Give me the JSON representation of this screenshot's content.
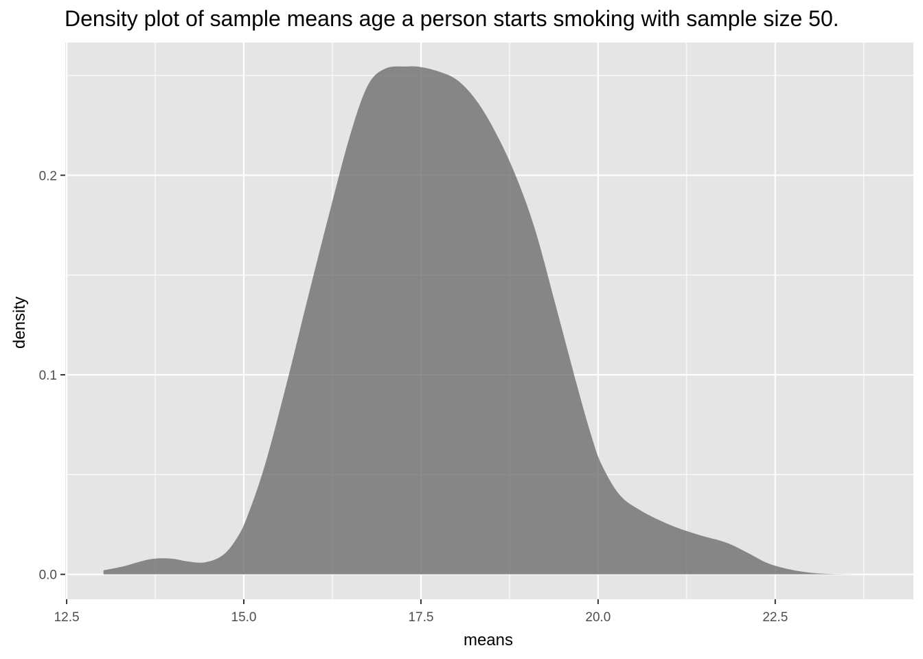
{
  "chart_data": {
    "type": "area",
    "title": "Density plot of sample means age a person starts smoking with sample size 50.",
    "xlabel": "means",
    "ylabel": "density",
    "xlim": [
      12.48,
      24.45
    ],
    "ylim": [
      -0.0125,
      0.2665
    ],
    "x_ticks": [
      12.5,
      15.0,
      17.5,
      20.0,
      22.5
    ],
    "x_tick_labels": [
      "12.5",
      "15.0",
      "17.5",
      "20.0",
      "22.5"
    ],
    "y_ticks": [
      0.0,
      0.1,
      0.2
    ],
    "y_tick_labels": [
      "0.0",
      "0.1",
      "0.2"
    ],
    "grid": true,
    "colors": {
      "panel": "#e5e5e5",
      "grid": "#ffffff",
      "fill": "#666666",
      "fill_opacity": 0.75
    },
    "series": [
      {
        "x": [
          13.02,
          13.3,
          13.6,
          13.8,
          14.0,
          14.2,
          14.45,
          14.7,
          14.9,
          15.05,
          15.3,
          15.6,
          15.9,
          16.2,
          16.5,
          16.75,
          17.0,
          17.3,
          17.5,
          17.75,
          18.0,
          18.25,
          18.5,
          18.8,
          19.1,
          19.4,
          19.7,
          19.9,
          20.05,
          20.3,
          20.6,
          21.0,
          21.4,
          21.8,
          22.1,
          22.4,
          22.7,
          23.0,
          23.3,
          23.7
        ],
        "y": [
          0.002,
          0.004,
          0.007,
          0.008,
          0.0078,
          0.0065,
          0.006,
          0.0095,
          0.018,
          0.029,
          0.055,
          0.095,
          0.138,
          0.18,
          0.22,
          0.245,
          0.2535,
          0.2545,
          0.2542,
          0.252,
          0.248,
          0.239,
          0.225,
          0.203,
          0.174,
          0.135,
          0.095,
          0.07,
          0.055,
          0.04,
          0.032,
          0.025,
          0.02,
          0.016,
          0.011,
          0.0055,
          0.0025,
          0.0008,
          0.0002,
          0.0
        ]
      }
    ]
  }
}
